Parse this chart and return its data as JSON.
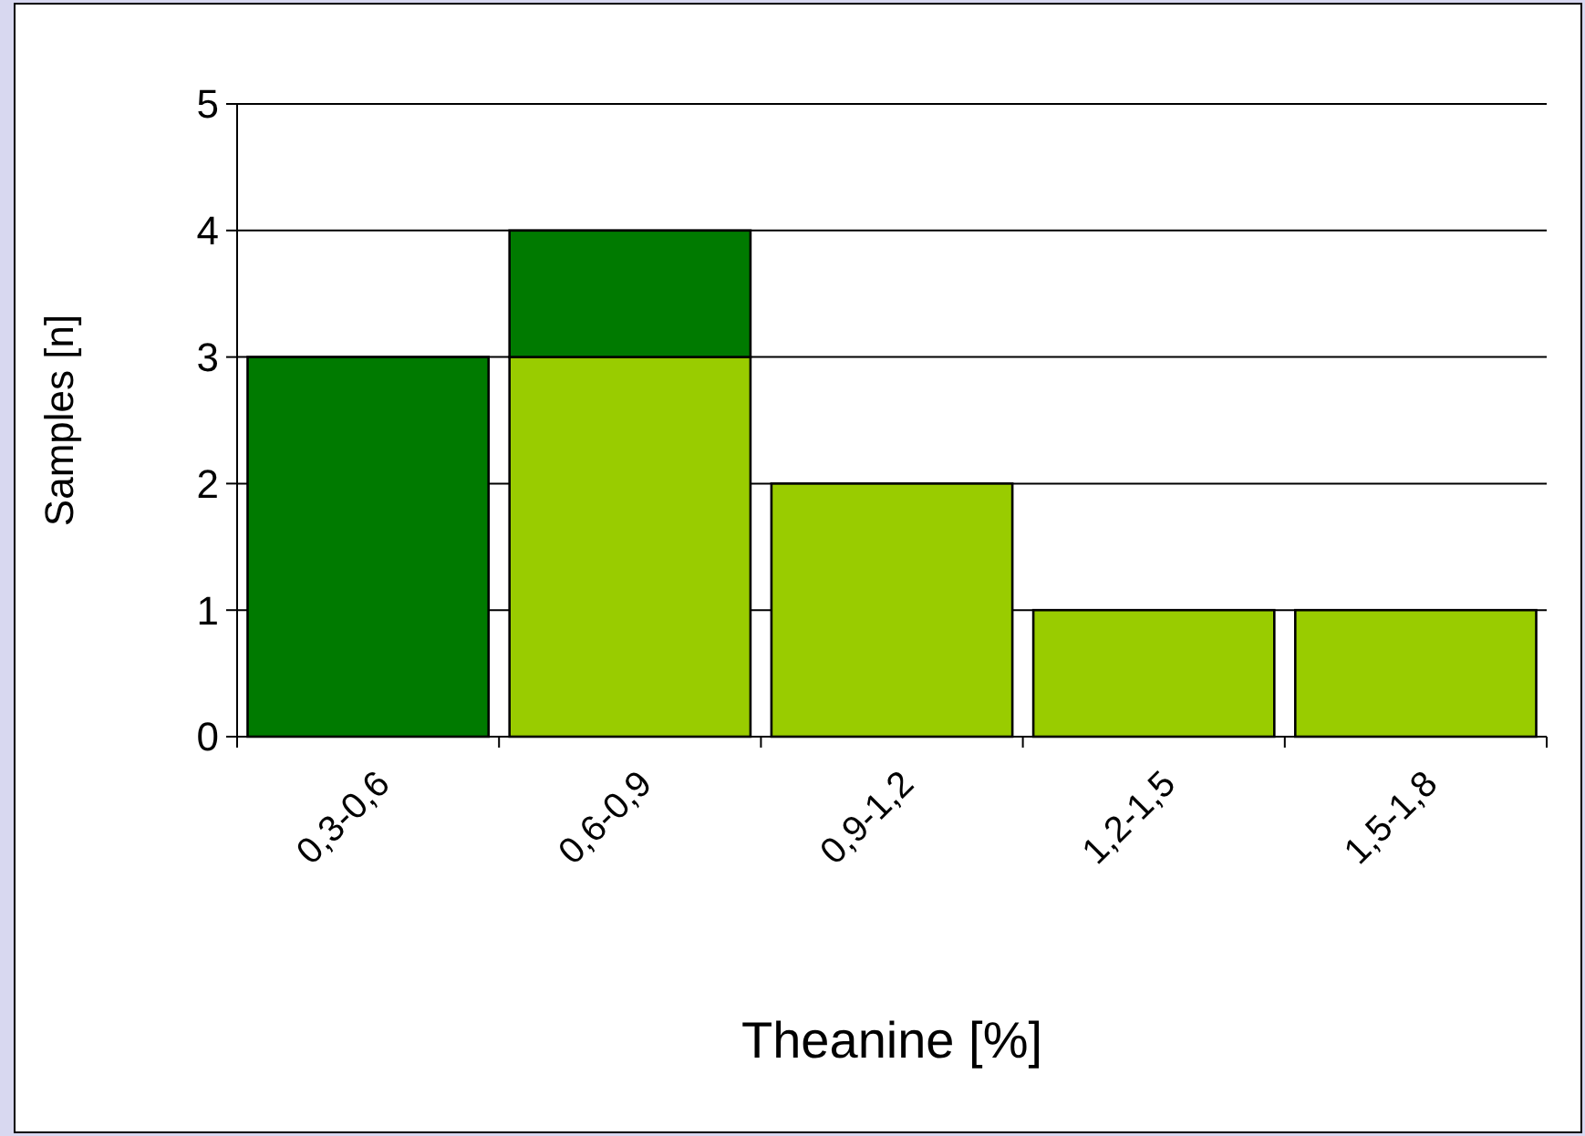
{
  "chart_data": {
    "type": "bar",
    "stacked": true,
    "xlabel": "Theanine [%]",
    "ylabel": "Samples [n]",
    "categories": [
      "0,3-0,6",
      "0,6-0,9",
      "0,9-1,2",
      "1,2-1,5",
      "1,5-1,8"
    ],
    "series": [
      {
        "color": "#99cc00",
        "values": [
          0,
          3,
          2,
          1,
          1
        ]
      },
      {
        "color": "#007a00",
        "values": [
          3,
          1,
          0,
          0,
          0
        ]
      }
    ],
    "ylim": [
      0,
      5
    ],
    "yticks": [
      0,
      1,
      2,
      3,
      4,
      5
    ],
    "grid": "y"
  }
}
